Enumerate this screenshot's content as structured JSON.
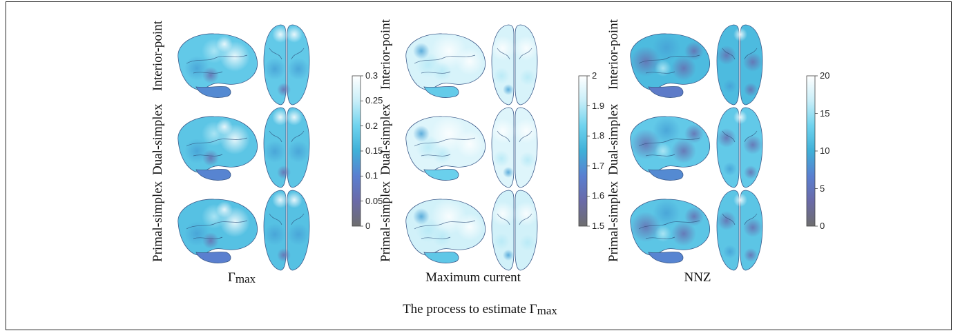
{
  "panels": [
    {
      "title_symbol": "Γ",
      "title_subscript": "max",
      "row_labels": [
        "Interior-point",
        "Dual-simplex",
        "Primal-simplex"
      ],
      "colorbar": {
        "min": 0,
        "max": 0.3,
        "ticks": [
          "0.3",
          "0.25",
          "0.2",
          "0.15",
          "0.1",
          "0.05",
          "0"
        ]
      }
    },
    {
      "title": "Maximum current",
      "row_labels": [
        "Interior-point",
        "Dual-simplex",
        "Primal-simplex"
      ],
      "colorbar": {
        "min": 1.5,
        "max": 2,
        "ticks": [
          "2",
          "1.9",
          "1.8",
          "1.7",
          "1.6",
          "1.5"
        ]
      }
    },
    {
      "title": "NNZ",
      "row_labels": [
        "Interior-point",
        "Dual-simplex",
        "Primal-simplex"
      ],
      "colorbar": {
        "min": 0,
        "max": 20,
        "ticks": [
          "20",
          "15",
          "10",
          "5",
          "0"
        ]
      }
    }
  ],
  "caption": {
    "prefix": "The process to estimate ",
    "symbol": "Γ",
    "subscript": "max"
  },
  "colormap": [
    "#6e6e6e",
    "#6a6aa8",
    "#5a7fd0",
    "#3fb0d8",
    "#6fd3ee",
    "#c8eef8",
    "#ffffff"
  ],
  "brain_fill_levels": {
    "panel1": [
      0.62,
      0.6,
      0.58
    ],
    "panel2": [
      0.88,
      0.9,
      0.86
    ],
    "panel3": [
      0.55,
      0.62,
      0.6
    ]
  }
}
